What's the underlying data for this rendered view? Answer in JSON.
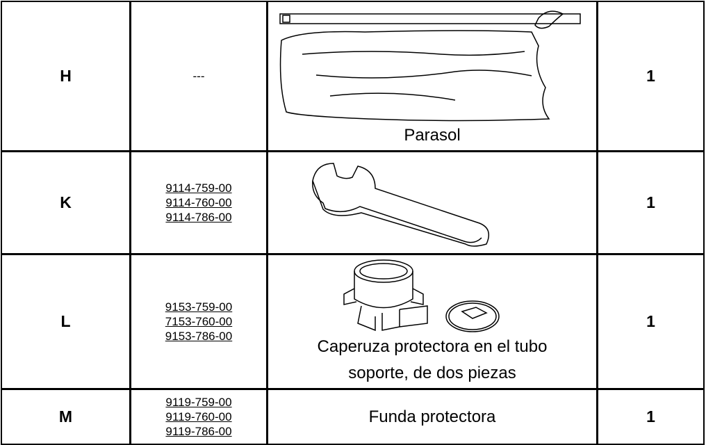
{
  "table": {
    "rows": [
      {
        "letter": "H",
        "parts": "---",
        "description": "Parasol",
        "quantity": "1"
      },
      {
        "letter": "K",
        "parts": [
          "9114-759-00",
          "9114-760-00",
          "9114-786-00"
        ],
        "quantity": "1"
      },
      {
        "letter": "L",
        "parts": [
          "9153-759-00",
          "7153-760-00",
          "9153-786-00"
        ],
        "description": "Caperuza protectora en el tubo soporte, de dos piezas",
        "quantity": "1"
      },
      {
        "letter": "M",
        "parts": [
          "9119-759-00",
          "9119-760-00",
          "9119-786-00"
        ],
        "description": "Funda protectora",
        "quantity": "1"
      }
    ]
  }
}
